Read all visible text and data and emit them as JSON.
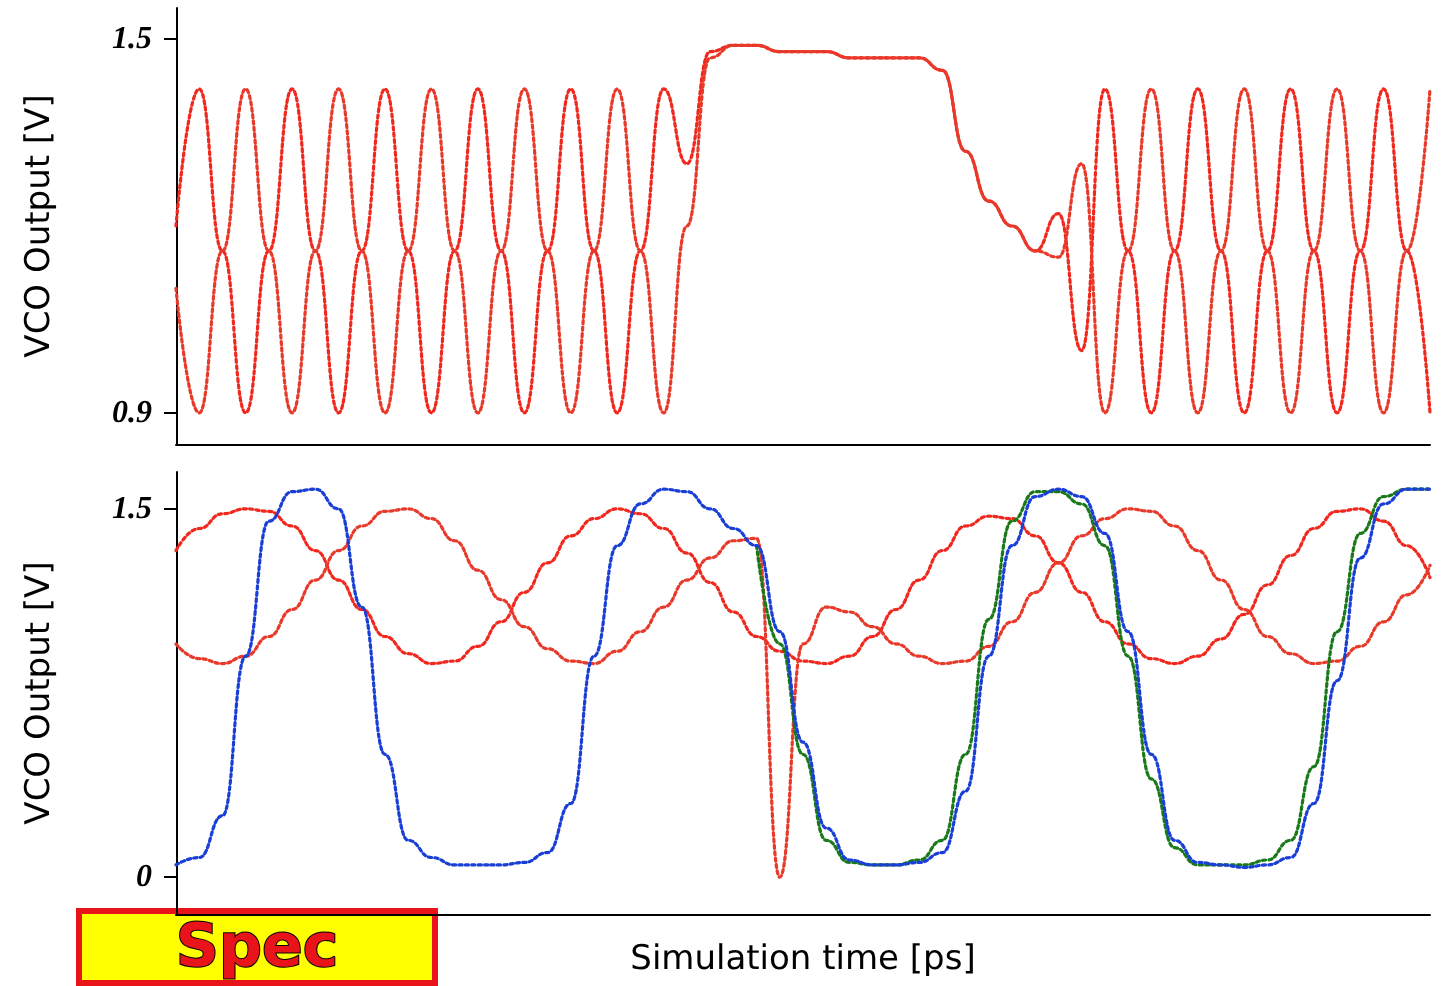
{
  "chart_data": [
    {
      "type": "line",
      "ylabel": "VCO Output [V]",
      "categories": [
        null,
        null,
        null,
        null,
        null,
        null,
        null,
        null,
        null,
        null,
        null,
        null,
        null,
        null,
        null,
        null,
        null,
        null,
        null,
        null,
        null,
        null,
        null,
        null,
        null,
        null,
        null,
        null,
        null,
        null,
        null,
        null,
        null,
        null,
        null,
        null,
        null,
        null,
        null,
        null,
        null,
        null,
        null,
        null,
        null,
        null,
        null,
        null,
        null,
        null,
        null,
        null,
        null,
        null,
        null
      ],
      "ylim": [
        0.85,
        1.55
      ],
      "yticks": [
        0.9,
        1.5
      ],
      "tick_labels": "y",
      "grid": false,
      "line_style": "dotted",
      "marker": "none",
      "series": [
        {
          "color": "#f0281e",
          "values": [
            1.2,
            1.42,
            1.16,
            0.9,
            1.16,
            1.42,
            1.16,
            0.9,
            1.16,
            1.42,
            1.16,
            0.9,
            1.16,
            1.42,
            1.16,
            0.9,
            1.16,
            1.42,
            1.16,
            0.9,
            1.16,
            1.42,
            1.3,
            1.48,
            1.49,
            1.49,
            1.48,
            1.48,
            1.48,
            1.47,
            1.47,
            1.47,
            1.47,
            1.45,
            1.32,
            1.24,
            1.2,
            1.16,
            1.22,
            1.0,
            1.42,
            1.16,
            0.9,
            1.16,
            1.42,
            1.16,
            0.9,
            1.16,
            1.42,
            1.16,
            0.9,
            1.16,
            1.42,
            1.16,
            0.9
          ]
        },
        {
          "color": "#e83a2a",
          "values": [
            1.1,
            0.9,
            1.16,
            1.42,
            1.16,
            0.9,
            1.16,
            1.42,
            1.16,
            0.9,
            1.16,
            1.42,
            1.16,
            0.9,
            1.16,
            1.42,
            1.16,
            0.9,
            1.16,
            1.42,
            1.16,
            0.9,
            1.2,
            1.47,
            1.49,
            1.49,
            1.48,
            1.48,
            1.48,
            1.47,
            1.47,
            1.47,
            1.47,
            1.45,
            1.32,
            1.24,
            1.2,
            1.16,
            1.15,
            1.3,
            0.9,
            1.16,
            1.42,
            1.16,
            0.9,
            1.16,
            1.42,
            1.16,
            0.9,
            1.16,
            1.42,
            1.16,
            0.9,
            1.16,
            1.42
          ]
        }
      ]
    },
    {
      "type": "line",
      "ylabel": "VCO Output [V]",
      "xlabel": "Simulation time [ps]",
      "categories": [
        null,
        null,
        null,
        null,
        null,
        null,
        null,
        null,
        null,
        null,
        null,
        null,
        null,
        null,
        null,
        null,
        null,
        null,
        null,
        null,
        null,
        null,
        null,
        null,
        null,
        null,
        null,
        null,
        null,
        null,
        null,
        null,
        null,
        null,
        null,
        null,
        null,
        null,
        null,
        null,
        null,
        null,
        null,
        null,
        null,
        null,
        null,
        null,
        null,
        null,
        null,
        null,
        null,
        null,
        null
      ],
      "ylim": [
        -0.15,
        1.65
      ],
      "yticks": [
        0,
        1.5
      ],
      "tick_labels": "y",
      "grid": false,
      "line_style": "dotted",
      "marker": "none",
      "annotations": [
        "Spec"
      ],
      "series": [
        {
          "color": "#f0281e",
          "values": [
            1.33,
            1.42,
            1.48,
            1.5,
            1.49,
            1.43,
            1.33,
            1.21,
            1.09,
            0.98,
            0.91,
            0.87,
            0.88,
            0.94,
            1.04,
            1.16,
            1.28,
            1.39,
            1.46,
            1.5,
            1.48,
            1.42,
            1.32,
            1.2,
            1.08,
            0.98,
            0.92,
            0.88,
            0.87,
            0.9,
            0.98,
            1.09,
            1.21,
            1.33,
            1.43,
            1.47,
            1.46,
            1.39,
            1.28,
            1.16,
            1.04,
            0.95,
            0.89,
            0.87,
            0.9,
            0.97,
            1.07,
            1.19,
            1.31,
            1.42,
            1.49,
            1.5,
            1.45,
            1.35,
            1.22
          ]
        },
        {
          "color": "#e83a2a",
          "values": [
            0.95,
            0.89,
            0.87,
            0.9,
            0.98,
            1.09,
            1.21,
            1.33,
            1.43,
            1.49,
            1.5,
            1.46,
            1.37,
            1.25,
            1.13,
            1.02,
            0.93,
            0.88,
            0.87,
            0.92,
            1.0,
            1.1,
            1.21,
            1.3,
            1.37,
            1.38,
            0.0,
            0.95,
            1.1,
            1.08,
            1.02,
            0.95,
            0.9,
            0.87,
            0.88,
            0.94,
            1.04,
            1.16,
            1.28,
            1.39,
            1.46,
            1.5,
            1.49,
            1.43,
            1.33,
            1.21,
            1.09,
            0.98,
            0.91,
            0.87,
            0.88,
            0.94,
            1.04,
            1.15,
            1.27
          ]
        },
        {
          "color": "#1a7a1a",
          "values": [
            null,
            null,
            null,
            null,
            null,
            null,
            null,
            null,
            null,
            null,
            null,
            null,
            null,
            null,
            null,
            null,
            null,
            null,
            null,
            null,
            null,
            null,
            null,
            null,
            null,
            1.35,
            0.95,
            0.5,
            0.15,
            0.06,
            0.05,
            0.05,
            0.07,
            0.15,
            0.5,
            1.05,
            1.45,
            1.57,
            1.57,
            1.52,
            1.35,
            0.9,
            0.4,
            0.12,
            0.05,
            0.05,
            0.05,
            0.07,
            0.15,
            0.45,
            1.0,
            1.4,
            1.55,
            1.58,
            1.58
          ]
        },
        {
          "color": "#1a3fd6",
          "values": [
            0.05,
            0.08,
            0.25,
            0.9,
            1.45,
            1.57,
            1.58,
            1.5,
            1.1,
            0.5,
            0.15,
            0.08,
            0.05,
            0.05,
            0.05,
            0.06,
            0.1,
            0.3,
            0.9,
            1.35,
            1.52,
            1.58,
            1.57,
            1.5,
            1.42,
            1.35,
            1.0,
            0.55,
            0.2,
            0.07,
            0.05,
            0.05,
            0.06,
            0.1,
            0.35,
            0.9,
            1.35,
            1.55,
            1.58,
            1.55,
            1.4,
            1.0,
            0.5,
            0.15,
            0.06,
            0.05,
            0.04,
            0.05,
            0.08,
            0.3,
            0.8,
            1.3,
            1.52,
            1.58,
            1.58
          ]
        }
      ]
    }
  ]
}
